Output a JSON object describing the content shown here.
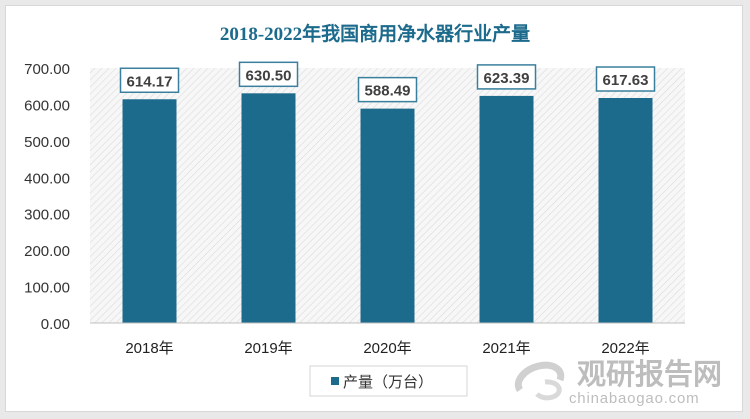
{
  "chart_data": {
    "type": "bar",
    "title": "2018-2022年我国商用净水器行业产量",
    "categories": [
      "2018年",
      "2019年",
      "2020年",
      "2021年",
      "2022年"
    ],
    "series": [
      {
        "name": "产量（万台）",
        "values": [
          614.17,
          630.5,
          588.49,
          623.39,
          617.63
        ]
      }
    ],
    "data_labels": [
      "614.17",
      "630.50",
      "588.49",
      "623.39",
      "617.63"
    ],
    "yticks": [
      "0.00",
      "100.00",
      "200.00",
      "300.00",
      "400.00",
      "500.00",
      "600.00",
      "700.00"
    ],
    "ylim": [
      0,
      700
    ],
    "grid": false,
    "legend_position": "bottom-left",
    "bar_color": "#1c6a8c",
    "title_color": "#1c6a8c"
  },
  "watermark": {
    "text": "观研报告网",
    "url_text": "chinabaogao.com"
  }
}
